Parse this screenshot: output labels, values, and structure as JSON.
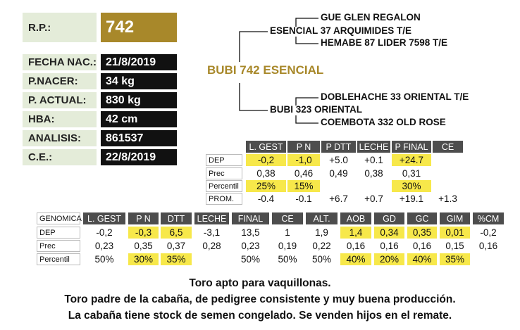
{
  "animal": {
    "fields": [
      {
        "label": "R.P.:",
        "value": "742"
      },
      {
        "label": "FECHA NAC.:",
        "value": "21/8/2019"
      },
      {
        "label": "P.NACER:",
        "value": "34 kg"
      },
      {
        "label": "P. ACTUAL:",
        "value": "830 kg"
      },
      {
        "label": "HBA:",
        "value": "42 cm"
      },
      {
        "label": "ANALISIS:",
        "value": "861537"
      },
      {
        "label": "C.E.:",
        "value": "22/8/2019"
      }
    ]
  },
  "pedigree": {
    "name": "BUBI 742 ESENCIAL",
    "sire": "ESENCIAL 37 ARQUIMIDES T/E",
    "sire_sire": "GUE GLEN REGALON",
    "sire_dam": "HEMABE 87 LIDER 7598 T/E",
    "dam": "BUBI 323 ORIENTAL",
    "dam_sire": "DOBLEHACHE 33 ORIENTAL T/E",
    "dam_dam": "COEMBOTA 332 OLD ROSE"
  },
  "dep_table": {
    "columns": [
      "L. GEST",
      "P N",
      "P DTT",
      "LECHE",
      "P FINAL",
      "CE"
    ],
    "rows": [
      {
        "label": "DEP",
        "cells": [
          "-0,2",
          "-1,0",
          "+5.0",
          "+0.1",
          "+24.7",
          null
        ]
      },
      {
        "label": "Prec",
        "cells": [
          "0,38",
          "0,46",
          "0,49",
          "0,38",
          "0,31",
          null
        ]
      },
      {
        "label": "Percentil",
        "cells": [
          "25%",
          "15%",
          null,
          null,
          "30%",
          null
        ]
      },
      {
        "label": "PROM.",
        "cells": [
          "-0.4",
          "-0.1",
          "+6.7",
          "+0.7",
          "+19.1",
          "+1.3"
        ]
      }
    ],
    "highlight": [
      [
        0,
        0
      ],
      [
        0,
        1
      ],
      [
        0,
        4
      ],
      [
        2,
        0
      ],
      [
        2,
        1
      ],
      [
        2,
        4
      ]
    ]
  },
  "genomica_table": {
    "title": "GENOMICA",
    "columns": [
      "L. GEST",
      "P N",
      "DTT",
      "LECHE",
      "FINAL",
      "CE",
      "ALT.",
      "AOB",
      "GD",
      "GC",
      "GIM",
      "%CM"
    ],
    "rows": [
      {
        "label": "DEP",
        "cells": [
          "-0,2",
          "-0,3",
          "6,5",
          "-3,1",
          "13,5",
          "1",
          "1,9",
          "1,4",
          "0,34",
          "0,35",
          "0,01",
          "-0,2"
        ]
      },
      {
        "label": "Prec",
        "cells": [
          "0,23",
          "0,35",
          "0,37",
          "0,28",
          "0,23",
          "0,19",
          "0,22",
          "0,16",
          "0,16",
          "0,16",
          "0,15",
          "0,16"
        ]
      },
      {
        "label": "Percentil",
        "cells": [
          "50%",
          "30%",
          "35%",
          null,
          "50%",
          "50%",
          "50%",
          "40%",
          "20%",
          "40%",
          "35%",
          null
        ]
      }
    ],
    "highlight": [
      [
        0,
        1
      ],
      [
        0,
        2
      ],
      [
        0,
        7
      ],
      [
        0,
        8
      ],
      [
        0,
        9
      ],
      [
        0,
        10
      ],
      [
        2,
        1
      ],
      [
        2,
        2
      ],
      [
        2,
        7
      ],
      [
        2,
        8
      ],
      [
        2,
        9
      ],
      [
        2,
        10
      ]
    ]
  },
  "notes": [
    "Toro apto para vaquillonas.",
    "Toro padre de la cabaña, de pedigree consistente y muy buena producción.",
    "La cabaña tiene stock de semen congelado. Se venden hijos en el remate."
  ]
}
